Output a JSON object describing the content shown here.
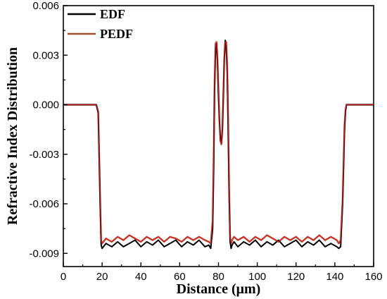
{
  "chart_data": {
    "type": "line",
    "xlabel": "Distance (μm)",
    "ylabel": "Refractive Index Distribution",
    "xlim": [
      0,
      160
    ],
    "ylim": [
      -0.0098,
      0.006
    ],
    "x_ticks": [
      0,
      20,
      40,
      60,
      80,
      100,
      120,
      140,
      160
    ],
    "y_ticks": [
      0.006,
      0.003,
      0.0,
      -0.003,
      -0.006,
      -0.009
    ],
    "y_tick_labels": [
      "0.006",
      "0.003",
      "0.000",
      "-0.003",
      "-0.006",
      "-0.009"
    ],
    "x_tick_labels": [
      "0",
      "20",
      "40",
      "60",
      "80",
      "100",
      "120",
      "140",
      "160"
    ],
    "grid": false,
    "legend_position": "top-left",
    "colors": {
      "EDF": "#000000",
      "PEDF": "#a0522d",
      "PEDF_inner": "#e8202a"
    },
    "series": [
      {
        "name": "EDF",
        "x": [
          0,
          17,
          18,
          19,
          19.5,
          20,
          22,
          25,
          28,
          31,
          34,
          37,
          40,
          43,
          46,
          49,
          52,
          55,
          58,
          61,
          64,
          67,
          70,
          73,
          75,
          76,
          77,
          77.5,
          78,
          78.5,
          79,
          79.5,
          80,
          80.5,
          81,
          81.5,
          82,
          82.5,
          83,
          83.5,
          84,
          84.5,
          85,
          85.5,
          86,
          86.5,
          87,
          88,
          90,
          93,
          96,
          99,
          102,
          105,
          108,
          111,
          114,
          117,
          120,
          123,
          126,
          129,
          132,
          135,
          138,
          141,
          142,
          143,
          144,
          145,
          145.5,
          146,
          147,
          148,
          160
        ],
        "y": [
          0.0,
          0.0,
          -0.0005,
          -0.006,
          -0.0085,
          -0.0087,
          -0.0084,
          -0.0086,
          -0.0083,
          -0.0086,
          -0.0084,
          -0.0082,
          -0.0086,
          -0.0083,
          -0.0085,
          -0.0082,
          -0.0086,
          -0.0084,
          -0.0082,
          -0.0086,
          -0.0083,
          -0.0085,
          -0.0082,
          -0.0086,
          -0.0085,
          -0.0087,
          -0.0075,
          -0.004,
          0.001,
          0.0035,
          0.0037,
          0.0025,
          0.0005,
          -0.001,
          -0.0021,
          -0.0023,
          -0.0015,
          0.0005,
          0.0028,
          0.0039,
          0.0035,
          0.002,
          -0.0015,
          -0.0055,
          -0.0083,
          -0.0087,
          -0.0085,
          -0.0083,
          -0.0086,
          -0.0083,
          -0.0085,
          -0.0082,
          -0.0086,
          -0.0083,
          -0.0085,
          -0.0082,
          -0.0086,
          -0.0084,
          -0.0082,
          -0.0086,
          -0.0083,
          -0.0085,
          -0.0082,
          -0.0086,
          -0.0084,
          -0.0086,
          -0.0087,
          -0.0086,
          -0.006,
          -0.0015,
          -0.0004,
          0.0,
          0.0,
          0.0,
          0.0
        ]
      },
      {
        "name": "PEDF",
        "x": [
          0,
          17,
          18,
          19,
          19.5,
          20,
          22,
          25,
          28,
          31,
          34,
          37,
          40,
          43,
          46,
          49,
          52,
          55,
          58,
          61,
          64,
          67,
          70,
          73,
          75,
          76,
          77,
          77.5,
          78,
          78.5,
          79,
          79.5,
          80,
          80.5,
          81,
          81.5,
          82,
          82.5,
          83,
          83.5,
          84,
          84.5,
          85,
          85.5,
          86,
          86.5,
          87,
          88,
          90,
          93,
          96,
          99,
          102,
          105,
          108,
          111,
          114,
          117,
          120,
          123,
          126,
          129,
          132,
          135,
          138,
          141,
          142,
          143,
          144,
          145,
          145.5,
          146,
          147,
          148,
          160
        ],
        "y": [
          0.0,
          0.0,
          -0.0004,
          -0.0058,
          -0.0082,
          -0.0084,
          -0.0081,
          -0.0083,
          -0.008,
          -0.0082,
          -0.0079,
          -0.0081,
          -0.0083,
          -0.008,
          -0.0082,
          -0.008,
          -0.0083,
          -0.008,
          -0.0081,
          -0.0083,
          -0.008,
          -0.0082,
          -0.008,
          -0.0082,
          -0.0083,
          -0.0084,
          -0.007,
          -0.0035,
          0.0015,
          0.0037,
          0.0038,
          0.0028,
          0.0008,
          -0.001,
          -0.0022,
          -0.0024,
          -0.0016,
          0.0005,
          0.0028,
          0.0038,
          0.0038,
          0.0025,
          -0.001,
          -0.005,
          -0.008,
          -0.0084,
          -0.0082,
          -0.008,
          -0.0082,
          -0.008,
          -0.0083,
          -0.008,
          -0.0082,
          -0.0079,
          -0.0081,
          -0.0083,
          -0.008,
          -0.0082,
          -0.008,
          -0.0083,
          -0.008,
          -0.0082,
          -0.0079,
          -0.0082,
          -0.008,
          -0.0082,
          -0.0084,
          -0.0082,
          -0.0058,
          -0.0012,
          -0.0003,
          0.0,
          0.0,
          0.0,
          0.0
        ]
      }
    ]
  }
}
